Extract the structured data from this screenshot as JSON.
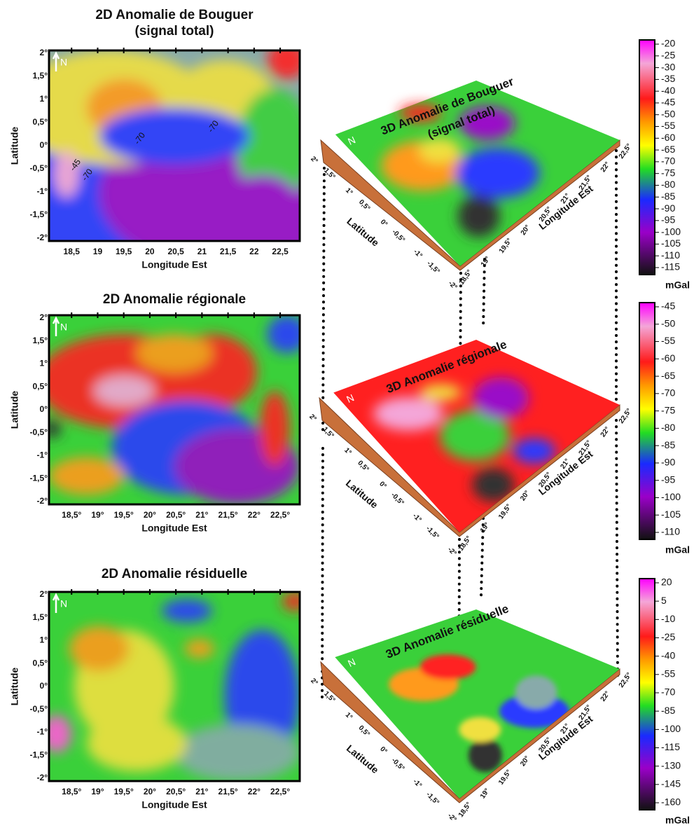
{
  "maps_2d": [
    {
      "title": [
        "2D Anomalie de Bouguer",
        "(signal total)"
      ],
      "x_label": "Longitude Est",
      "y_label": "Latitude",
      "north": "N",
      "x_ticks": [
        "18,5",
        "19",
        "19,5",
        "20",
        "20,5",
        "21",
        "21,5",
        "22",
        "22,5"
      ],
      "y_ticks": [
        "2°",
        "1,5°",
        "1°",
        "0,5°",
        "0°",
        "-0,5°",
        "-1°",
        "-1,5°",
        "-2°"
      ],
      "contour_labels": [
        "-70",
        "-70",
        "-45",
        "-70"
      ]
    },
    {
      "title": [
        "2D Anomalie régionale"
      ],
      "x_label": "Longitude Est",
      "y_label": "Latitude",
      "north": "N",
      "x_ticks": [
        "18,5°",
        "19°",
        "19,5°",
        "20°",
        "20,5°",
        "21°",
        "21,5°",
        "22°",
        "22,5°"
      ],
      "y_ticks": [
        "2°",
        "1,5°",
        "1°",
        "0,5°",
        "0°",
        "-0,5°",
        "-1°",
        "-1,5°",
        "-2°"
      ]
    },
    {
      "title": [
        "2D Anomalie résiduelle"
      ],
      "x_label": "Longitude Est",
      "y_label": "Latitude",
      "north": "N",
      "x_ticks": [
        "18,5°",
        "19°",
        "19,5°",
        "20°",
        "20,5°",
        "21°",
        "21,5°",
        "22°",
        "22,5°"
      ],
      "y_ticks": [
        "2°",
        "1,5°",
        "1°",
        "0,5°",
        "0°",
        "-0,5°",
        "-1°",
        "-1,5°",
        "-2°"
      ]
    }
  ],
  "maps_3d": [
    {
      "title": [
        "3D Anomalie de Bouguer",
        "(signal total)"
      ],
      "x_label": "Longitude Est",
      "y_label": "Latitude",
      "north": "N",
      "x_ticks": [
        "18,5°",
        "19°",
        "19,5°",
        "20°",
        "20,5°",
        "21°",
        "21,5°",
        "22°",
        "22,5°"
      ],
      "y_ticks": [
        "2°",
        "1,5°",
        "1°",
        "0,5°",
        "0°",
        "-0,5°",
        "-1°",
        "-1,5°",
        "-2°"
      ]
    },
    {
      "title": [
        "3D Anomalie régionale"
      ],
      "x_label": "Longitude Est",
      "y_label": "Latitude",
      "north": "N",
      "x_ticks": [
        "18,5°",
        "19°",
        "19,5°",
        "20°",
        "20,5°",
        "21°",
        "21,5°",
        "22°",
        "22,5°"
      ],
      "y_ticks": [
        "2°",
        "1,5°",
        "1°",
        "0,5°",
        "0°",
        "-0,5°",
        "-1°",
        "-1,5°",
        "-2°"
      ]
    },
    {
      "title": [
        "3D Anomalie résiduelle"
      ],
      "x_label": "Longitude Est",
      "y_label": "Latitude",
      "north": "N",
      "x_ticks": [
        "18,5°",
        "19°",
        "19,5°",
        "20°",
        "20,5°",
        "21°",
        "21,5°",
        "22°",
        "22,5°"
      ],
      "y_ticks": [
        "2°",
        "1,5°",
        "1°",
        "0,5°",
        "0°",
        "-0,5°",
        "-1°",
        "-1,5°",
        "-2°"
      ]
    }
  ],
  "colorbars": [
    {
      "ticks": [
        -20,
        -25,
        -30,
        -35,
        -40,
        -45,
        -50,
        -55,
        -60,
        -65,
        -70,
        -75,
        -80,
        -85,
        -90,
        -95,
        -100,
        -105,
        -110,
        -115
      ],
      "unit": "mGal"
    },
    {
      "ticks": [
        -45,
        -50,
        -55,
        -60,
        -65,
        -70,
        -75,
        -80,
        -85,
        -90,
        -95,
        -100,
        -105,
        -110
      ],
      "unit": "mGal"
    },
    {
      "ticks": [
        20,
        5,
        -10,
        -25,
        -40,
        -55,
        -70,
        -85,
        -100,
        -115,
        -130,
        -145,
        -160
      ],
      "unit": "mGal"
    }
  ]
}
